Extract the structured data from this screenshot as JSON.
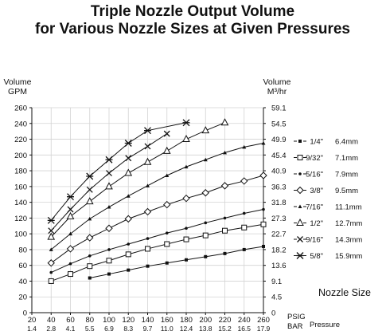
{
  "chart_data": {
    "type": "line",
    "title": [
      "Triple Nozzle Output Volume",
      "for Various Nozzle Sizes at Given Pressures"
    ],
    "ylabel_left": [
      "Volume",
      "GPM"
    ],
    "ylabel_right": [
      "Volume",
      "M³/hr"
    ],
    "xlabel_psig": "PSIG",
    "xlabel_bar": "BAR",
    "xlabel_pressure": "Pressure",
    "legend_title": "Nozzle Size",
    "xlim": [
      20,
      260
    ],
    "ylim": [
      0,
      260
    ],
    "grid": true,
    "legend_position": "right",
    "x_ticks_psig": [
      "20",
      "40",
      "60",
      "80",
      "100",
      "120",
      "140",
      "160",
      "180",
      "200",
      "220",
      "240",
      "260"
    ],
    "x_ticks_bar": [
      "1.4",
      "2.8",
      "4.1",
      "5.5",
      "6.9",
      "8.3",
      "9.7",
      "11.0",
      "12.4",
      "13.8",
      "15.2",
      "16.5",
      "17.9"
    ],
    "y_ticks_gpm": [
      "0",
      "20",
      "40",
      "60",
      "80",
      "100",
      "120",
      "140",
      "160",
      "180",
      "200",
      "220",
      "240",
      "260"
    ],
    "y_ticks_m3hr": [
      "0",
      "4.5",
      "9.1",
      "13.6",
      "18.2",
      "22.7",
      "27.3",
      "31.8",
      "36.3",
      "40.9",
      "45.4",
      "49.9",
      "54.5",
      "59.1"
    ],
    "series": [
      {
        "name": "1/4\"",
        "metric": "6.4mm",
        "marker": "square",
        "x": [
          80,
          100,
          120,
          140,
          160,
          180,
          200,
          220,
          240,
          260
        ],
        "y": [
          44,
          49,
          54,
          59,
          63,
          67,
          71,
          75,
          80,
          84
        ]
      },
      {
        "name": "9/32\"",
        "metric": "7.1mm",
        "marker": "open-square",
        "x": [
          40,
          60,
          80,
          100,
          120,
          140,
          160,
          180,
          200,
          220,
          240,
          260
        ],
        "y": [
          40,
          49,
          59,
          66,
          74,
          81,
          87,
          93,
          98,
          104,
          108,
          112
        ]
      },
      {
        "name": "5/16\"",
        "metric": "7.9mm",
        "marker": "small-dot",
        "x": [
          40,
          60,
          80,
          100,
          120,
          140,
          160,
          180,
          200,
          220,
          240,
          260
        ],
        "y": [
          51,
          62,
          72,
          80,
          87,
          94,
          101,
          107,
          114,
          120,
          126,
          131
        ]
      },
      {
        "name": "3/8\"",
        "metric": "9.5mm",
        "marker": "open-diamond",
        "x": [
          40,
          60,
          80,
          100,
          120,
          140,
          160,
          180,
          200,
          220,
          240,
          260
        ],
        "y": [
          63,
          81,
          95,
          107,
          119,
          128,
          137,
          145,
          152,
          161,
          167,
          174
        ]
      },
      {
        "name": "7/16\"",
        "metric": "11.1mm",
        "marker": "small-triangle",
        "x": [
          40,
          60,
          80,
          100,
          120,
          140,
          160,
          180,
          200,
          220,
          240,
          260
        ],
        "y": [
          80,
          100,
          119,
          134,
          148,
          161,
          174,
          185,
          194,
          203,
          210,
          215
        ]
      },
      {
        "name": "1/2\"",
        "metric": "12.7mm",
        "marker": "open-triangle",
        "x": [
          40,
          60,
          80,
          100,
          120,
          140,
          160,
          180,
          200,
          220
        ],
        "y": [
          96,
          122,
          141,
          160,
          177,
          191,
          205,
          220,
          231,
          241
        ]
      },
      {
        "name": "9/16\"",
        "metric": "14.3mm",
        "marker": "x",
        "x": [
          40,
          60,
          80,
          100,
          120,
          140,
          160
        ],
        "y": [
          104,
          131,
          156,
          177,
          196,
          211,
          227
        ]
      },
      {
        "name": "5/8\"",
        "metric": "15.9mm",
        "marker": "star",
        "x": [
          40,
          60,
          80,
          100,
          120,
          140,
          180
        ],
        "y": [
          117,
          147,
          173,
          194,
          215,
          231,
          241
        ]
      }
    ]
  }
}
